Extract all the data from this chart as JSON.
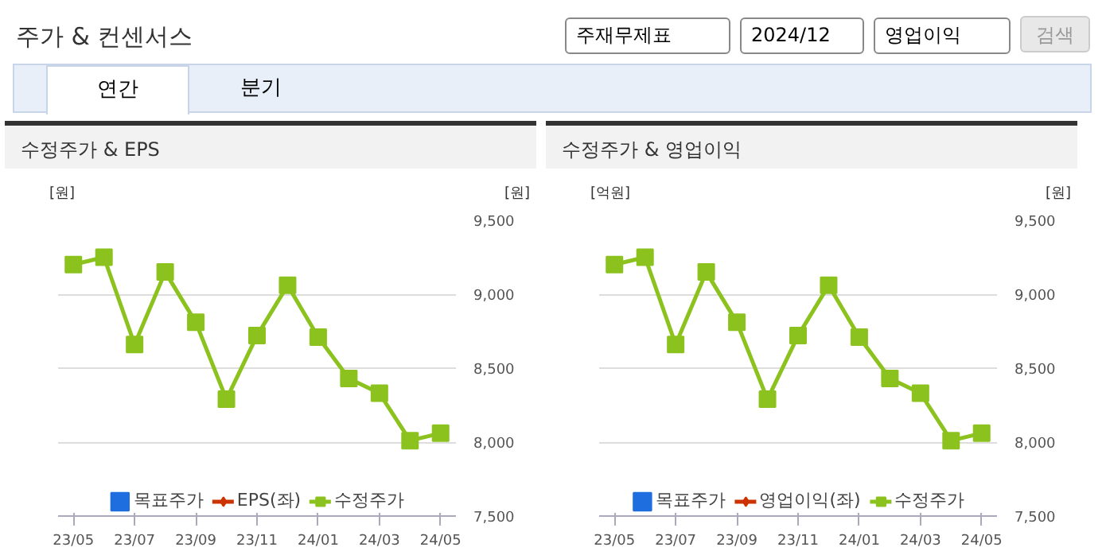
{
  "chart_data": [
    {
      "type": "other",
      "title": "주가 & 컨센서스",
      "annotations": [
        "주재무제표",
        "2024/12",
        "영업이익",
        "검색",
        "연간",
        "분기"
      ]
    },
    {
      "type": "line",
      "title": "수정주가 & EPS",
      "ylabel": "[원]",
      "y2label": "[원]",
      "categories": [
        "23/05",
        null,
        "23/07",
        null,
        "23/09",
        null,
        "23/11",
        null,
        "24/01",
        null,
        "24/03",
        null,
        "24/05"
      ],
      "y2lim": [
        7500,
        9500
      ],
      "y2ticks": [
        {
          "value": 7500,
          "label": "7,500"
        },
        {
          "value": 8000,
          "label": "8,000"
        },
        {
          "value": 8500,
          "label": "8,500"
        },
        {
          "value": 9000,
          "label": "9,000"
        },
        {
          "value": 9500,
          "label": "9,500"
        }
      ],
      "grid": "y",
      "legend": "bottom",
      "series": [
        {
          "name": "목표주가",
          "type": "bar",
          "color": "#1f6ee0",
          "axis": "y2",
          "values": [
            null,
            null,
            null,
            null,
            null,
            null,
            null,
            null,
            null,
            null,
            null,
            null,
            null
          ]
        },
        {
          "name": "EPS(좌)",
          "type": "line",
          "marker": "diamond",
          "color": "#cc3300",
          "axis": "y",
          "values": [
            null,
            null,
            null,
            null,
            null,
            null,
            null,
            null,
            null,
            null,
            null,
            null,
            null
          ]
        },
        {
          "name": "수정주가",
          "type": "line",
          "marker": "square",
          "color": "#8cc21e",
          "axis": "y2",
          "values": [
            9200,
            9250,
            8660,
            9150,
            8810,
            8290,
            8720,
            9060,
            8710,
            8430,
            8330,
            8010,
            8060
          ]
        }
      ]
    },
    {
      "type": "line",
      "title": "수정주가 & 영업이익",
      "ylabel": "[억원]",
      "y2label": "[원]",
      "categories": [
        "23/05",
        null,
        "23/07",
        null,
        "23/09",
        null,
        "23/11",
        null,
        "24/01",
        null,
        "24/03",
        null,
        "24/05"
      ],
      "y2lim": [
        7500,
        9500
      ],
      "y2ticks": [
        {
          "value": 7500,
          "label": "7,500"
        },
        {
          "value": 8000,
          "label": "8,000"
        },
        {
          "value": 8500,
          "label": "8,500"
        },
        {
          "value": 9000,
          "label": "9,000"
        },
        {
          "value": 9500,
          "label": "9,500"
        }
      ],
      "grid": "y",
      "legend": "bottom",
      "series": [
        {
          "name": "목표주가",
          "type": "bar",
          "color": "#1f6ee0",
          "axis": "y2",
          "values": [
            null,
            null,
            null,
            null,
            null,
            null,
            null,
            null,
            null,
            null,
            null,
            null,
            null
          ]
        },
        {
          "name": "영업이익(좌)",
          "type": "line",
          "marker": "diamond",
          "color": "#cc3300",
          "axis": "y",
          "values": [
            null,
            null,
            null,
            null,
            null,
            null,
            null,
            null,
            null,
            null,
            null,
            null,
            null
          ]
        },
        {
          "name": "수정주가",
          "type": "line",
          "marker": "square",
          "color": "#8cc21e",
          "axis": "y2",
          "values": [
            9200,
            9250,
            8660,
            9150,
            8810,
            8290,
            8720,
            9060,
            8710,
            8430,
            8330,
            8010,
            8060
          ]
        }
      ]
    }
  ]
}
